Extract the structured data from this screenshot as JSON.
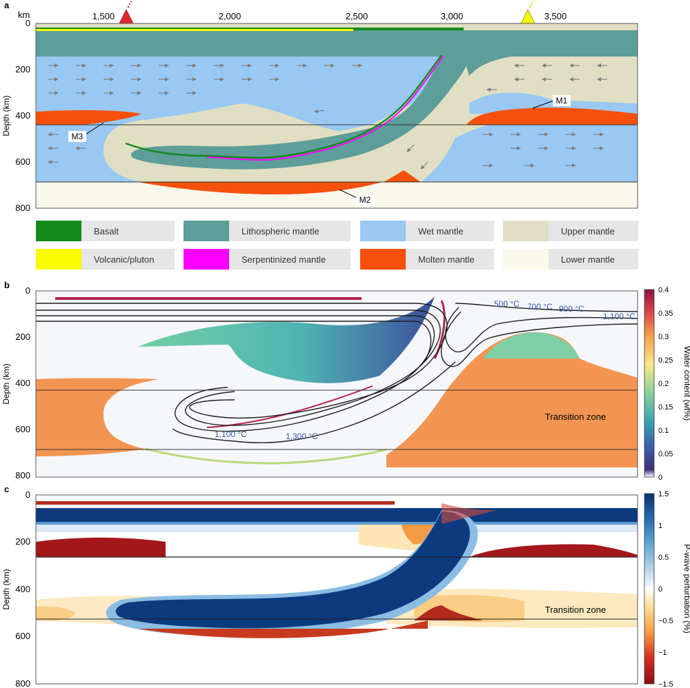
{
  "panel_a": {
    "label": "a",
    "x_unit": "km",
    "x_ticks": [
      "1,500",
      "2,000",
      "2,500",
      "3,000",
      "3,500"
    ],
    "y_ticks": [
      "0",
      "200",
      "400",
      "600",
      "800"
    ],
    "y_title": "Depth (km)",
    "annotations": {
      "m1": "M1",
      "m2": "M2",
      "m3": "M3"
    },
    "colors": {
      "basalt": "#138a1c",
      "lithospheric": "#5d9d9a",
      "wet": "#99c8f3",
      "upper": "#e1dfc3",
      "lower": "#f9f8ea",
      "molten": "#f6500c",
      "volcanic": "#fafa00",
      "serpentinized": "#ff00ff"
    },
    "legend": [
      {
        "label": "Basalt",
        "color": "#138a1c"
      },
      {
        "label": "Lithospheric mantle",
        "color": "#5d9d9a"
      },
      {
        "label": "Wet mantle",
        "color": "#99c8f3"
      },
      {
        "label": "Upper mantle",
        "color": "#e1dfc3"
      },
      {
        "label": "Volcanic/pluton",
        "color": "#fafa00"
      },
      {
        "label": "Serpentinized mantle",
        "color": "#ff00ff"
      },
      {
        "label": "Molten mantle",
        "color": "#f6500c"
      },
      {
        "label": "Lower mantle",
        "color": "#f9f8ea"
      }
    ]
  },
  "panel_b": {
    "label": "b",
    "y_ticks": [
      "0",
      "200",
      "400",
      "600",
      "800"
    ],
    "y_title": "Depth (km)",
    "isotherms": [
      "500 °C",
      "700 °C",
      "900 °C",
      "1,100 °C",
      "1,100 °C",
      "1,300 °C"
    ],
    "zone_label": "Transition zone",
    "colorbar_title": "Water content (wt%)",
    "colorbar_ticks": [
      "0.4",
      "0.35",
      "0.3",
      "0.25",
      "0.2",
      "0.15",
      "0.1",
      "0.05",
      "0"
    ]
  },
  "panel_c": {
    "label": "c",
    "y_ticks": [
      "0",
      "200",
      "400",
      "600",
      "800"
    ],
    "y_title": "Depth (km)",
    "zone_label": "Transition zone",
    "colorbar_title": "P-wave perturbation (%)",
    "colorbar_ticks": [
      "1.5",
      "1",
      "0.5",
      "0",
      "−0.5",
      "−1",
      "−1.5"
    ]
  }
}
